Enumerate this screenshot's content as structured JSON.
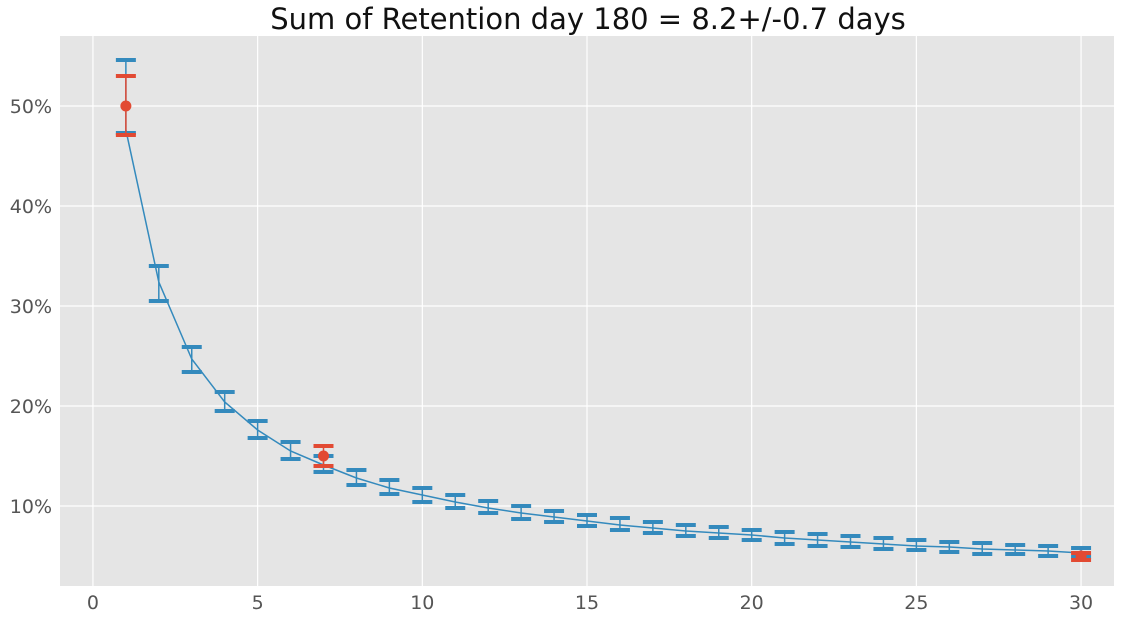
{
  "chart_data": {
    "type": "line",
    "title": "Sum of Retention day 180 = 8.2+/-0.7 days",
    "xlabel": "",
    "ylabel": "",
    "xlim": [
      -1,
      31
    ],
    "ylim": [
      0.02,
      0.57
    ],
    "x_ticks": [
      0,
      5,
      10,
      15,
      20,
      25,
      30
    ],
    "y_ticks": [
      0.1,
      0.2,
      0.3,
      0.4,
      0.5
    ],
    "y_tick_labels": [
      "10%",
      "20%",
      "30%",
      "40%",
      "50%"
    ],
    "grid": true,
    "legend": "none",
    "series": [
      {
        "type": "line-errorbar",
        "color": "#348abd",
        "x": [
          1,
          2,
          3,
          4,
          5,
          6,
          7,
          8,
          9,
          10,
          11,
          12,
          13,
          14,
          15,
          16,
          17,
          18,
          19,
          20,
          21,
          22,
          23,
          24,
          25,
          26,
          27,
          28,
          29,
          30
        ],
        "values": [
          0.476,
          0.324,
          0.247,
          0.204,
          0.176,
          0.155,
          0.141,
          0.128,
          0.118,
          0.111,
          0.104,
          0.098,
          0.093,
          0.089,
          0.085,
          0.081,
          0.078,
          0.075,
          0.073,
          0.071,
          0.068,
          0.066,
          0.064,
          0.062,
          0.06,
          0.059,
          0.057,
          0.056,
          0.055,
          0.053
        ],
        "lower": [
          0.473,
          0.305,
          0.234,
          0.195,
          0.168,
          0.147,
          0.134,
          0.121,
          0.112,
          0.104,
          0.098,
          0.093,
          0.087,
          0.084,
          0.08,
          0.076,
          0.073,
          0.07,
          0.068,
          0.066,
          0.062,
          0.06,
          0.059,
          0.057,
          0.056,
          0.054,
          0.052,
          0.052,
          0.05,
          0.049
        ],
        "upper": [
          0.546,
          0.34,
          0.259,
          0.214,
          0.185,
          0.164,
          0.15,
          0.136,
          0.126,
          0.118,
          0.111,
          0.105,
          0.1,
          0.095,
          0.091,
          0.088,
          0.084,
          0.081,
          0.079,
          0.076,
          0.074,
          0.072,
          0.07,
          0.068,
          0.066,
          0.064,
          0.063,
          0.061,
          0.06,
          0.058
        ]
      },
      {
        "type": "points-errorbar",
        "color": "#e24a33",
        "x": [
          1,
          7,
          30
        ],
        "values": [
          0.5,
          0.15,
          0.05
        ],
        "lower": [
          0.471,
          0.14,
          0.046
        ],
        "upper": [
          0.53,
          0.16,
          0.053
        ]
      }
    ]
  },
  "colors": {
    "plot_background": "#e5e5e5",
    "grid": "#ffffff",
    "blue": "#348abd",
    "red": "#e24a33"
  }
}
